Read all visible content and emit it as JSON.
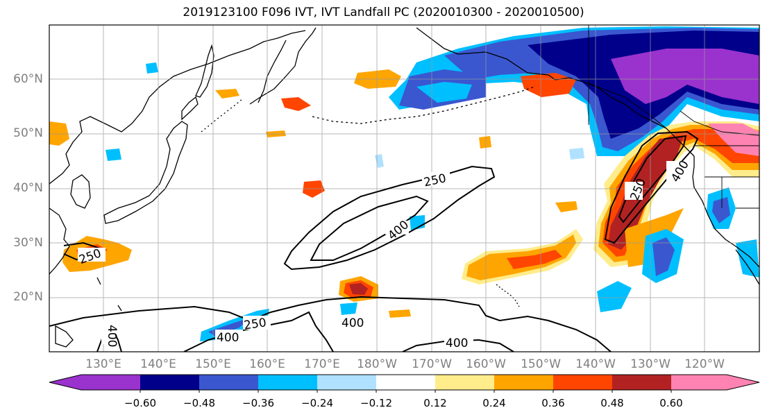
{
  "title": "2019123100 F096 IVT, IVT Landfall PC (2020010300 - 2020010500)",
  "lat_labels": [
    "60°N",
    "50°N",
    "40°N",
    "30°N",
    "20°N"
  ],
  "lon_labels": [
    "130°E",
    "140°E",
    "150°E",
    "160°E",
    "170°E",
    "180°W",
    "170°W",
    "160°W",
    "150°W",
    "140°W",
    "130°W",
    "120°W"
  ],
  "colorbar": {
    "ticks": [
      "−0.60",
      "−0.48",
      "−0.36",
      "−0.24",
      "−0.12",
      "0.12",
      "0.24",
      "0.36",
      "0.48",
      "0.60"
    ],
    "colors": [
      "#9a32cd",
      "#00008b",
      "#3a57cf",
      "#00bfff",
      "#b0e2ff",
      "#ffffff",
      "#ffec8b",
      "#ffa500",
      "#ff4500",
      "#b22222",
      "#ff83b2"
    ]
  },
  "contour_labels": [
    "250",
    "400",
    "250",
    "400",
    "250",
    "400",
    "400",
    "400",
    "400",
    "250"
  ]
}
